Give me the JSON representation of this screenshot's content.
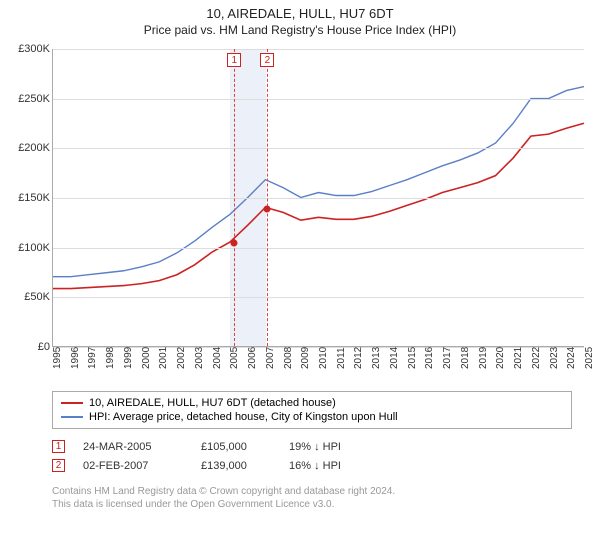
{
  "title": "10, AIREDALE, HULL, HU7 6DT",
  "subtitle": "Price paid vs. HM Land Registry's House Price Index (HPI)",
  "chart": {
    "type": "line",
    "background_color": "#ffffff",
    "grid_color": "#dddddd",
    "axis_color": "#888888",
    "text_color": "#333333",
    "title_fontsize": 13,
    "label_fontsize": 11,
    "tick_fontsize": 10,
    "x_years": [
      "1995",
      "1996",
      "1997",
      "1998",
      "1999",
      "2000",
      "2001",
      "2002",
      "2003",
      "2004",
      "2005",
      "2006",
      "2007",
      "2008",
      "2009",
      "2010",
      "2011",
      "2012",
      "2013",
      "2014",
      "2015",
      "2016",
      "2017",
      "2018",
      "2019",
      "2020",
      "2021",
      "2022",
      "2023",
      "2024",
      "2025"
    ],
    "y_ticks": [
      0,
      50000,
      100000,
      150000,
      200000,
      250000,
      300000
    ],
    "y_tick_labels": [
      "£0",
      "£50K",
      "£100K",
      "£150K",
      "£200K",
      "£250K",
      "£300K"
    ],
    "ylim": [
      0,
      300000
    ],
    "xlim": [
      1995,
      2025
    ],
    "series": [
      {
        "id": "property",
        "label": "10, AIREDALE, HULL, HU7 6DT (detached house)",
        "color": "#cc2222",
        "line_width": 1.6,
        "y": [
          58,
          58,
          59,
          60,
          61,
          63,
          66,
          72,
          82,
          95,
          105,
          122,
          140,
          135,
          127,
          130,
          128,
          128,
          131,
          136,
          142,
          148,
          155,
          160,
          165,
          172,
          190,
          212,
          214,
          220,
          225
        ]
      },
      {
        "id": "hpi",
        "label": "HPI: Average price, detached house, City of Kingston upon Hull",
        "color": "#5b7fc7",
        "line_width": 1.4,
        "y": [
          70,
          70,
          72,
          74,
          76,
          80,
          85,
          94,
          106,
          120,
          133,
          150,
          168,
          160,
          150,
          155,
          152,
          152,
          156,
          162,
          168,
          175,
          182,
          188,
          195,
          205,
          225,
          250,
          250,
          258,
          262
        ]
      }
    ],
    "shade": {
      "start_year": 2005,
      "end_year": 2007,
      "color": "rgba(180,200,230,0.25)"
    },
    "markers": [
      {
        "id": "1",
        "year": 2005.22,
        "value": 105,
        "color": "#cc2222"
      },
      {
        "id": "2",
        "year": 2007.09,
        "value": 139,
        "color": "#cc2222"
      }
    ]
  },
  "legend": {
    "items": [
      {
        "color": "#cc2222",
        "label": "10, AIREDALE, HULL, HU7 6DT (detached house)"
      },
      {
        "color": "#5b7fc7",
        "label": "HPI: Average price, detached house, City of Kingston upon Hull"
      }
    ]
  },
  "sales": [
    {
      "marker": "1",
      "date": "24-MAR-2005",
      "price": "£105,000",
      "diff": "19% ↓ HPI"
    },
    {
      "marker": "2",
      "date": "02-FEB-2007",
      "price": "£139,000",
      "diff": "16% ↓ HPI"
    }
  ],
  "footer_line1": "Contains HM Land Registry data © Crown copyright and database right 2024.",
  "footer_line2": "This data is licensed under the Open Government Licence v3.0."
}
